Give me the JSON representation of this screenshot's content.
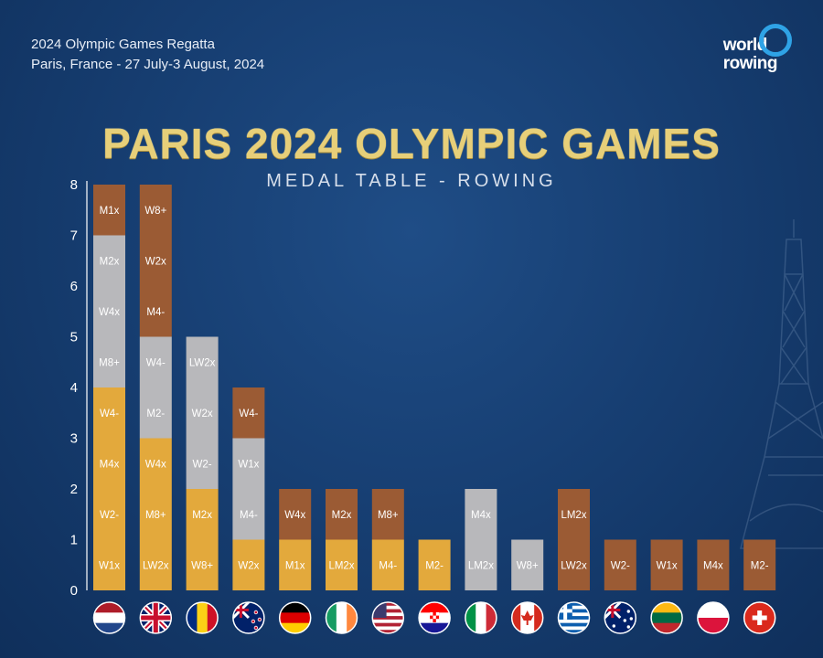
{
  "header": {
    "line1": "2024 Olympic Games Regatta",
    "line2": "Paris, France - 27 July-3 August, 2024"
  },
  "logo": {
    "line1": "world",
    "line2": "rowing"
  },
  "title": "PARIS 2024 OLYMPIC GAMES",
  "subtitle": "MEDAL TABLE - ROWING",
  "colors": {
    "gold": "#e3a93c",
    "silver": "#b8b8bb",
    "bronze": "#9b5b34",
    "background": "#173f73"
  },
  "chart_data": {
    "type": "bar",
    "stacked": true,
    "ylim": [
      0,
      8
    ],
    "yticks": [
      0,
      1,
      2,
      3,
      4,
      5,
      6,
      7,
      8
    ],
    "categories": [
      "Netherlands",
      "Great Britain",
      "Romania",
      "New Zealand",
      "Germany",
      "Ireland",
      "United States",
      "Croatia",
      "Italy",
      "Canada",
      "Greece",
      "Australia",
      "Lithuania",
      "Poland",
      "Switzerland"
    ],
    "flags": [
      "netherlands-flag",
      "great-britain-flag",
      "romania-flag",
      "new-zealand-flag",
      "germany-flag",
      "ireland-flag",
      "united-states-flag",
      "croatia-flag",
      "italy-flag",
      "canada-flag",
      "greece-flag",
      "australia-flag",
      "lithuania-flag",
      "poland-flag",
      "switzerland-flag"
    ],
    "series": [
      {
        "medal": "gold",
        "values": [
          4,
          3,
          2,
          1,
          1,
          1,
          1,
          1,
          0,
          0,
          0,
          0,
          0,
          0,
          0
        ]
      },
      {
        "medal": "silver",
        "values": [
          3,
          2,
          3,
          2,
          0,
          0,
          0,
          0,
          2,
          1,
          0,
          0,
          0,
          0,
          0
        ]
      },
      {
        "medal": "bronze",
        "values": [
          1,
          3,
          0,
          1,
          1,
          1,
          1,
          0,
          0,
          0,
          2,
          1,
          1,
          1,
          1
        ]
      }
    ],
    "segments": [
      [
        [
          "W1x",
          "gold"
        ],
        [
          "W2-",
          "gold"
        ],
        [
          "M4x",
          "gold"
        ],
        [
          "W4-",
          "gold"
        ],
        [
          "M8+",
          "silver"
        ],
        [
          "W4x",
          "silver"
        ],
        [
          "M2x",
          "silver"
        ],
        [
          "M1x",
          "bronze"
        ]
      ],
      [
        [
          "LW2x",
          "gold"
        ],
        [
          "M8+",
          "gold"
        ],
        [
          "W4x",
          "gold"
        ],
        [
          "M2-",
          "silver"
        ],
        [
          "W4-",
          "silver"
        ],
        [
          "M4-",
          "bronze"
        ],
        [
          "W2x",
          "bronze"
        ],
        [
          "W8+",
          "bronze"
        ]
      ],
      [
        [
          "W8+",
          "gold"
        ],
        [
          "M2x",
          "gold"
        ],
        [
          "W2-",
          "silver"
        ],
        [
          "W2x",
          "silver"
        ],
        [
          "LW2x",
          "silver"
        ]
      ],
      [
        [
          "W2x",
          "gold"
        ],
        [
          "M4-",
          "silver"
        ],
        [
          "W1x",
          "silver"
        ],
        [
          "W4-",
          "bronze"
        ]
      ],
      [
        [
          "M1x",
          "gold"
        ],
        [
          "W4x",
          "bronze"
        ]
      ],
      [
        [
          "LM2x",
          "gold"
        ],
        [
          "M2x",
          "bronze"
        ]
      ],
      [
        [
          "M4-",
          "gold"
        ],
        [
          "M8+",
          "bronze"
        ]
      ],
      [
        [
          "M2-",
          "gold"
        ]
      ],
      [
        [
          "LM2x",
          "silver"
        ],
        [
          "M4x",
          "silver"
        ]
      ],
      [
        [
          "W8+",
          "silver"
        ]
      ],
      [
        [
          "LW2x",
          "bronze"
        ],
        [
          "LM2x",
          "bronze"
        ]
      ],
      [
        [
          "W2-",
          "bronze"
        ]
      ],
      [
        [
          "W1x",
          "bronze"
        ]
      ],
      [
        [
          "M4x",
          "bronze"
        ]
      ],
      [
        [
          "M2-",
          "bronze"
        ]
      ]
    ]
  }
}
